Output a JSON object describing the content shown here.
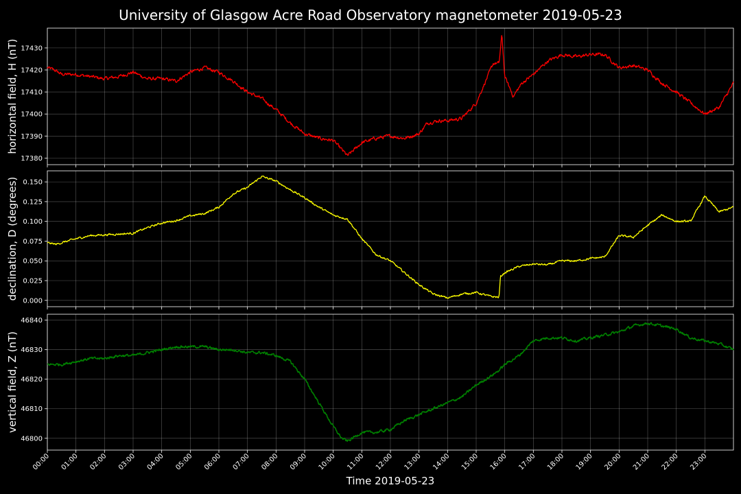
{
  "figure": {
    "title": "University of Glasgow Acre Road Observatory magnetometer 2019-05-23",
    "xlabel": "Time 2019-05-23",
    "x_ticks": [
      "00:00",
      "01:00",
      "02:00",
      "03:00",
      "04:00",
      "05:00",
      "06:00",
      "07:00",
      "08:00",
      "09:00",
      "10:00",
      "11:00",
      "12:00",
      "13:00",
      "14:00",
      "15:00",
      "16:00",
      "17:00",
      "18:00",
      "19:00",
      "20:00",
      "21:00",
      "22:00",
      "23:00"
    ],
    "background": "#000000"
  },
  "chart_data": [
    {
      "type": "line",
      "ylabel": "horizontal field, H (nT)",
      "color": "#ff0000",
      "xlim": [
        0,
        24
      ],
      "ylim": [
        17377,
        17439
      ],
      "y_ticks": [
        "17380",
        "17390",
        "17400",
        "17410",
        "17420",
        "17430"
      ],
      "x": [
        0,
        0.25,
        0.5,
        1,
        1.5,
        2,
        2.5,
        3,
        3.5,
        4,
        4.5,
        5,
        5.5,
        6,
        6.5,
        7,
        7.5,
        8,
        8.5,
        9,
        9.5,
        10,
        10.5,
        11,
        11.5,
        12,
        12.5,
        13,
        13.3,
        13.7,
        14,
        14.5,
        15,
        15.3,
        15.6,
        15.8,
        15.9,
        16,
        16.3,
        16.6,
        17,
        17.5,
        18,
        18.5,
        19,
        19.5,
        20,
        20.5,
        21,
        21.5,
        22,
        22.5,
        23,
        23.5,
        24
      ],
      "y": [
        17421,
        17420,
        17418,
        17418,
        17417,
        17416,
        17417,
        17419,
        17416,
        17416,
        17415,
        17419,
        17421,
        17419,
        17415,
        17410,
        17407,
        17402,
        17396,
        17391,
        17389,
        17388,
        17381,
        17387,
        17389,
        17390,
        17389,
        17391,
        17396,
        17397,
        17397,
        17398,
        17405,
        17414,
        17423,
        17423,
        17436,
        17417,
        17408,
        17414,
        17418,
        17424,
        17427,
        17426,
        17427,
        17427,
        17421,
        17422,
        17420,
        17414,
        17410,
        17405,
        17400,
        17403,
        17414
      ],
      "noise": 1.4
    },
    {
      "type": "line",
      "ylabel": "declination, D (degrees)",
      "color": "#ffff00",
      "xlim": [
        0,
        24
      ],
      "ylim": [
        -0.008,
        0.164
      ],
      "y_ticks": [
        "0.000",
        "0.025",
        "0.050",
        "0.075",
        "0.100",
        "0.125",
        "0.150"
      ],
      "x": [
        0,
        0.3,
        0.6,
        1,
        1.5,
        2,
        2.5,
        3,
        3.5,
        4,
        4.5,
        5,
        5.5,
        6,
        6.5,
        7,
        7.5,
        8,
        8.5,
        9,
        9.5,
        10,
        10.5,
        11,
        11.5,
        12,
        12.5,
        13,
        13.5,
        14,
        14.5,
        15,
        15.5,
        15.8,
        15.85,
        16,
        16.5,
        17,
        17.5,
        18,
        18.5,
        19,
        19.5,
        20,
        20.5,
        21,
        21.5,
        22,
        22.5,
        23,
        23.5,
        24
      ],
      "y": [
        0.073,
        0.071,
        0.074,
        0.078,
        0.082,
        0.083,
        0.084,
        0.085,
        0.092,
        0.098,
        0.101,
        0.107,
        0.11,
        0.118,
        0.135,
        0.143,
        0.157,
        0.151,
        0.14,
        0.13,
        0.118,
        0.108,
        0.103,
        0.078,
        0.058,
        0.05,
        0.035,
        0.02,
        0.008,
        0.003,
        0.008,
        0.01,
        0.005,
        0.004,
        0.03,
        0.035,
        0.043,
        0.046,
        0.045,
        0.05,
        0.05,
        0.053,
        0.055,
        0.082,
        0.08,
        0.095,
        0.108,
        0.1,
        0.1,
        0.132,
        0.112,
        0.118
      ],
      "noise": 0.0022
    },
    {
      "type": "line",
      "ylabel": "vertical field, Z (nT)",
      "color": "#008000",
      "xlim": [
        0,
        24
      ],
      "ylim": [
        46796,
        46842
      ],
      "y_ticks": [
        "46800",
        "46810",
        "46820",
        "46830",
        "46840"
      ],
      "x": [
        0,
        0.5,
        1,
        1.5,
        2,
        2.5,
        3,
        3.5,
        4,
        4.5,
        5,
        5.5,
        6,
        6.5,
        7,
        7.5,
        8,
        8.5,
        9,
        9.5,
        10,
        10.3,
        10.5,
        11,
        11.5,
        12,
        12.5,
        13,
        13.5,
        14,
        14.5,
        15,
        15.5,
        15.8,
        16,
        16.5,
        17,
        17.5,
        18,
        18.5,
        19,
        19.5,
        20,
        20.5,
        21,
        21.5,
        22,
        22.5,
        23,
        23.5,
        24
      ],
      "y": [
        46825,
        46825,
        46826,
        46827,
        46827,
        46828,
        46828,
        46829,
        46830,
        46831,
        46831,
        46831,
        46830,
        46830,
        46829,
        46829,
        46828,
        46826,
        46820,
        46812,
        46804,
        46800,
        46799,
        46802,
        46802,
        46803,
        46806,
        46808,
        46810,
        46812,
        46814,
        46818,
        46821,
        46823,
        46825,
        46828,
        46833,
        46834,
        46834,
        46833,
        46834,
        46835,
        46836,
        46838,
        46839,
        46838,
        46837,
        46834,
        46833,
        46832,
        46830
      ],
      "noise": 0.8
    }
  ]
}
